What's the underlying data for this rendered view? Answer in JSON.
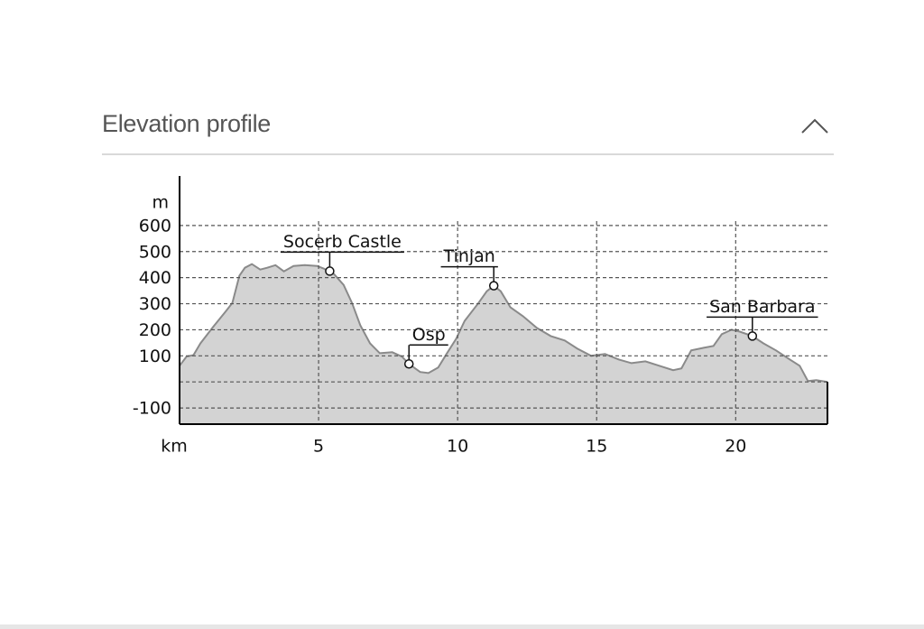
{
  "header": {
    "title": "Elevation profile"
  },
  "chart_data": {
    "type": "area",
    "x_label": "km",
    "y_label": "m",
    "x": [
      0,
      0.25,
      0.5,
      0.75,
      1.2,
      1.65,
      1.9,
      2.15,
      2.35,
      2.6,
      2.9,
      3.15,
      3.45,
      3.75,
      4.1,
      4.5,
      4.95,
      5.2,
      5.55,
      5.9,
      6.2,
      6.5,
      6.85,
      7.2,
      7.65,
      8.0,
      8.25,
      8.65,
      8.95,
      9.3,
      9.6,
      9.95,
      10.25,
      10.75,
      11.05,
      11.3,
      11.55,
      11.9,
      12.35,
      12.85,
      13.35,
      13.85,
      14.3,
      14.8,
      15.3,
      15.8,
      16.25,
      16.75,
      17.25,
      17.75,
      18.05,
      18.4,
      18.85,
      19.2,
      19.5,
      19.85,
      20.15,
      20.6,
      21.0,
      21.45,
      21.95,
      22.3,
      22.6,
      22.9,
      23.3
    ],
    "values": [
      62,
      97,
      103,
      148,
      210,
      269,
      303,
      407,
      438,
      452,
      431,
      438,
      448,
      424,
      445,
      448,
      445,
      434,
      414,
      372,
      303,
      217,
      148,
      110,
      114,
      97,
      69,
      38,
      34,
      55,
      107,
      166,
      234,
      303,
      348,
      369,
      348,
      286,
      252,
      207,
      176,
      159,
      128,
      100,
      107,
      86,
      72,
      79,
      62,
      45,
      52,
      121,
      131,
      138,
      183,
      200,
      193,
      176,
      148,
      121,
      86,
      62,
      3,
      7,
      0
    ],
    "color": "#d3d3d3",
    "line_color": "#8a8a8a",
    "xlim": [
      0,
      23.3
    ],
    "ylim": [
      -162,
      790
    ],
    "xticks": [
      5,
      10,
      15,
      20
    ],
    "yticks": [
      -100,
      100,
      200,
      300,
      400,
      500,
      600
    ],
    "grid": true,
    "annotations": [
      {
        "text": "Socerb Castle",
        "x": 5.4,
        "y": 425
      },
      {
        "text": "Osp",
        "x": 8.25,
        "y": 69
      },
      {
        "text": "Tinjan",
        "x": 11.3,
        "y": 369
      },
      {
        "text": "San Barbara",
        "x": 20.6,
        "y": 176
      }
    ]
  }
}
